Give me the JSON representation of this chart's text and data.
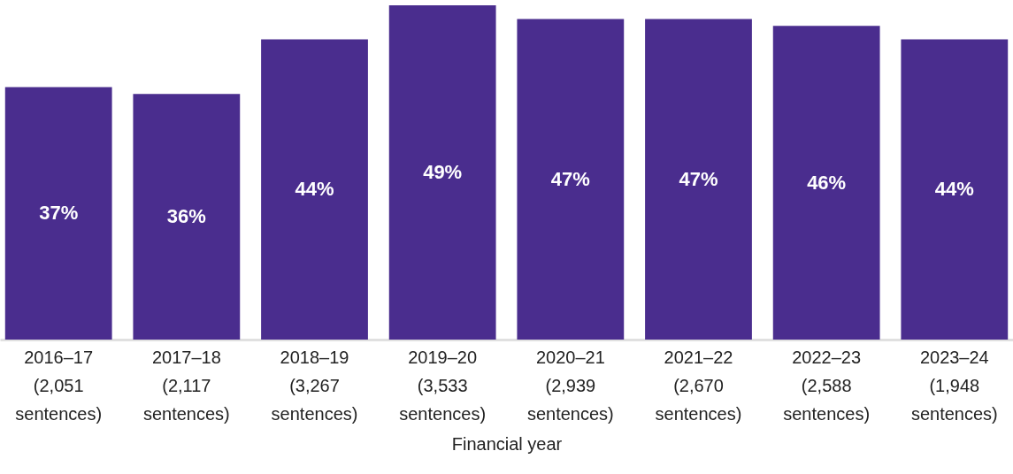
{
  "chart_data": {
    "type": "bar",
    "xlabel": "Financial year",
    "categories": [
      "2016–17\n(2,051\nsentences)",
      "2017–18\n(2,117\nsentences)",
      "2018–19\n(3,267\nsentences)",
      "2019–20\n(3,533\nsentences)",
      "2020–21\n(2,939\nsentences)",
      "2021–22\n(2,670\nsentences)",
      "2022–23\n(2,588\nsentences)",
      "2023–24\n(1,948\nsentences)"
    ],
    "values": [
      37,
      36,
      44,
      49,
      47,
      47,
      46,
      44
    ],
    "value_labels": [
      "37%",
      "36%",
      "44%",
      "49%",
      "47%",
      "47%",
      "46%",
      "44%"
    ],
    "color": "#4a2d8e",
    "grid": false
  }
}
